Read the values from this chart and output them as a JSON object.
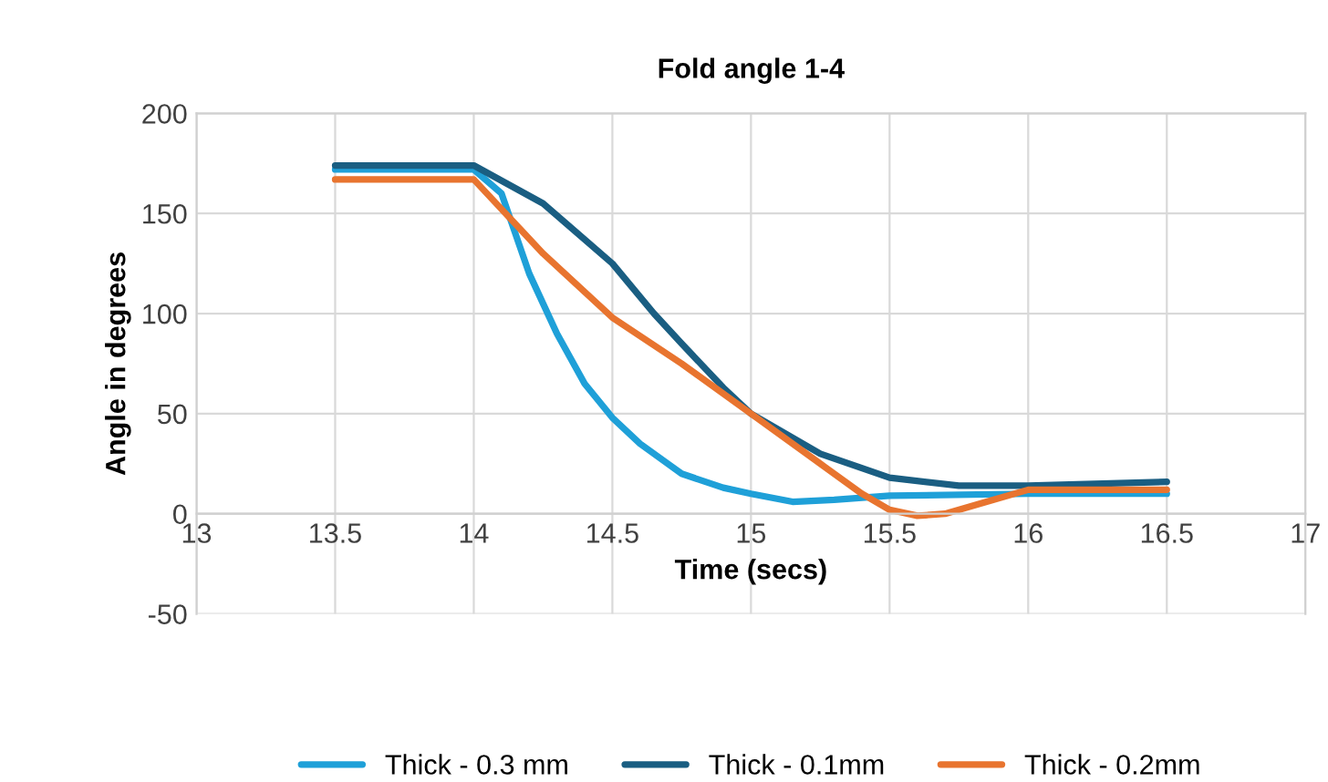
{
  "chart_data": {
    "type": "line",
    "title": "Fold angle 1-4",
    "xlabel": "Time (secs)",
    "ylabel": "Angle in degrees",
    "series": [
      {
        "name": "Thick - 0.3 mm",
        "color": "#1fa0d8",
        "x": [
          13.5,
          14,
          14.1,
          14.2,
          14.3,
          14.4,
          14.5,
          14.6,
          14.75,
          14.9,
          15,
          15.15,
          15.3,
          15.5,
          16,
          16.5
        ],
        "values": [
          172,
          172,
          160,
          120,
          90,
          65,
          48,
          35,
          20,
          13,
          10,
          6,
          7,
          9,
          10,
          10
        ]
      },
      {
        "name": "Thick - 0.1mm",
        "color": "#1a5e82",
        "x": [
          13.5,
          14,
          14.25,
          14.5,
          14.65,
          14.75,
          14.9,
          15,
          15.25,
          15.5,
          15.75,
          16,
          16.5
        ],
        "values": [
          174,
          174,
          155,
          125,
          100,
          85,
          63,
          50,
          30,
          18,
          14,
          14,
          16
        ]
      },
      {
        "name": "Thick - 0.2mm",
        "color": "#e8742f",
        "x": [
          13.5,
          14,
          14.25,
          14.5,
          14.75,
          15,
          15.25,
          15.4,
          15.5,
          15.6,
          15.7,
          15.85,
          16,
          16.5
        ],
        "values": [
          167,
          167,
          130,
          98,
          75,
          50,
          25,
          10,
          2,
          -1,
          0,
          6,
          12,
          12
        ]
      }
    ],
    "xlim": [
      13,
      17
    ],
    "xticks": [
      13,
      13.5,
      14,
      14.5,
      15,
      15.5,
      16,
      16.5,
      17
    ],
    "ylim": [
      -50,
      200
    ],
    "yticks": [
      -50,
      0,
      50,
      100,
      150,
      200
    ],
    "grid": true,
    "legend": "bottom",
    "marker": "none",
    "line_style": "solid"
  }
}
